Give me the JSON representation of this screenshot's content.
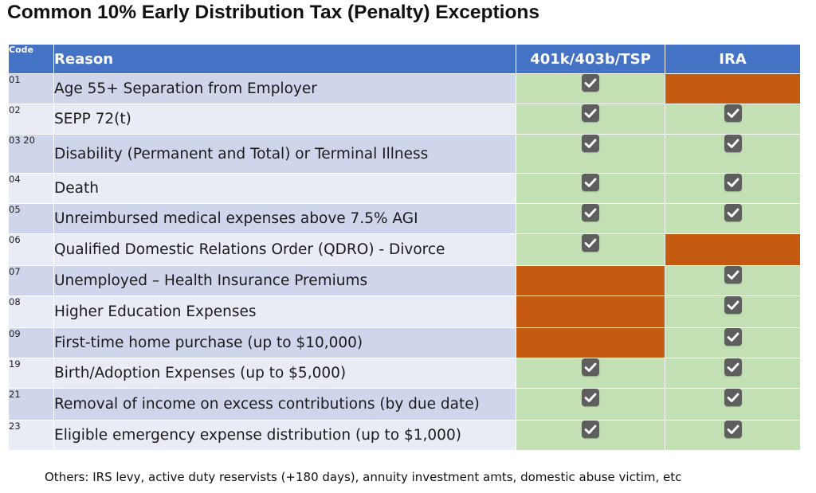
{
  "title": "Common 10% Early Distribution Tax (Penalty) Exceptions",
  "colors": {
    "header": "#4472c4",
    "applies": "#c3e0b5",
    "not_applies": "#c55a11",
    "row_dark": "#cfd5ea",
    "row_light": "#e9ebf5"
  },
  "table": {
    "headers": {
      "code": "Code",
      "reason": "Reason",
      "plan401k": "401k/403b/TSP",
      "ira": "IRA"
    },
    "rows": [
      {
        "code": "01",
        "reason": "Age 55+ Separation from Employer",
        "plan401k": true,
        "ira": false
      },
      {
        "code": "02",
        "reason": "SEPP 72(t)",
        "plan401k": true,
        "ira": true
      },
      {
        "code": "03\n20",
        "reason": "Disability (Permanent and Total) or Terminal Illness",
        "plan401k": true,
        "ira": true
      },
      {
        "code": "04",
        "reason": "Death",
        "plan401k": true,
        "ira": true
      },
      {
        "code": "05",
        "reason": "Unreimbursed medical expenses above 7.5% AGI",
        "plan401k": true,
        "ira": true
      },
      {
        "code": "06",
        "reason": "Qualified Domestic Relations Order (QDRO) - Divorce",
        "plan401k": true,
        "ira": false
      },
      {
        "code": "07",
        "reason": "Unemployed – Health Insurance Premiums",
        "plan401k": false,
        "ira": true
      },
      {
        "code": "08",
        "reason": "Higher Education Expenses",
        "plan401k": false,
        "ira": true
      },
      {
        "code": "09",
        "reason": "First-time home purchase (up to $10,000)",
        "plan401k": false,
        "ira": true
      },
      {
        "code": "19",
        "reason": "Birth/Adoption Expenses (up to $5,000)",
        "plan401k": true,
        "ira": true
      },
      {
        "code": "21",
        "reason": "Removal of income on excess contributions (by due date)",
        "plan401k": true,
        "ira": true
      },
      {
        "code": "23",
        "reason": "Eligible emergency expense distribution (up to $1,000)",
        "plan401k": true,
        "ira": true
      }
    ]
  },
  "footnote": "Others: IRS levy, active duty reservists (+180 days), annuity investment amts, domestic abuse victim, etc"
}
